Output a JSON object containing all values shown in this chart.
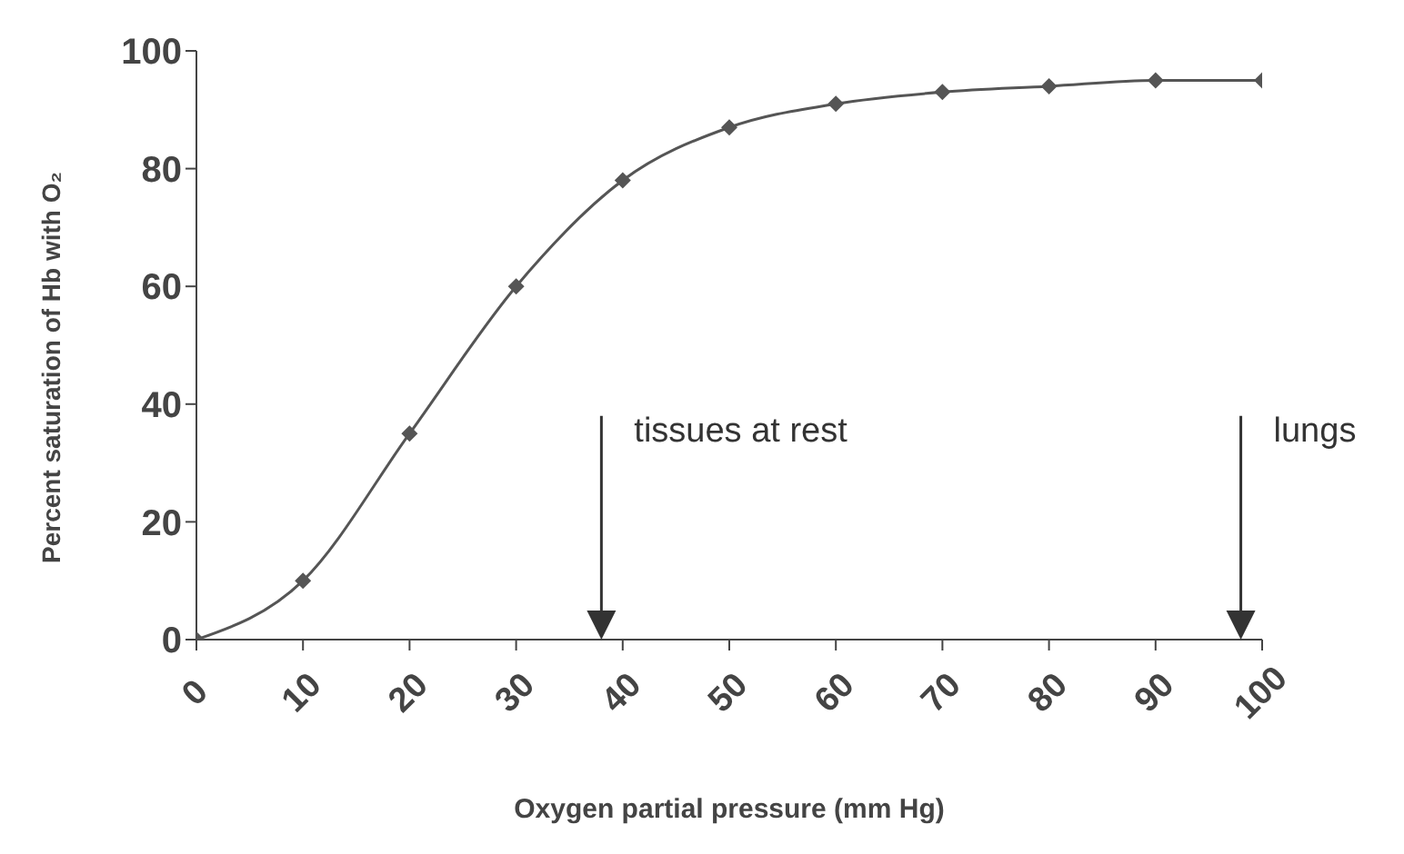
{
  "chart_data": {
    "type": "line",
    "xlabel": "Oxygen partial pressure (mm Hg)",
    "ylabel": "Percent saturation of Hb with O₂",
    "x": [
      0,
      10,
      20,
      30,
      40,
      50,
      60,
      70,
      80,
      90,
      100
    ],
    "series": [
      {
        "color": "#555555",
        "values": [
          0,
          10,
          35,
          60,
          78,
          87,
          91,
          93,
          94,
          95,
          95
        ]
      }
    ],
    "xlim": [
      0,
      100
    ],
    "xticks": [
      0,
      10,
      20,
      30,
      40,
      50,
      60,
      70,
      80,
      90,
      100
    ],
    "ylim": [
      0,
      100
    ],
    "yticks": [
      0,
      20,
      40,
      60,
      80,
      100
    ],
    "marker": "diamond",
    "line_style": "solid",
    "grid": false,
    "legend": false,
    "ref_lines": [
      {
        "axis": "x",
        "value": 38,
        "label": "tissues at rest",
        "color": "#333333"
      },
      {
        "axis": "x",
        "value": 98,
        "label": "lungs",
        "color": "#333333"
      }
    ]
  }
}
